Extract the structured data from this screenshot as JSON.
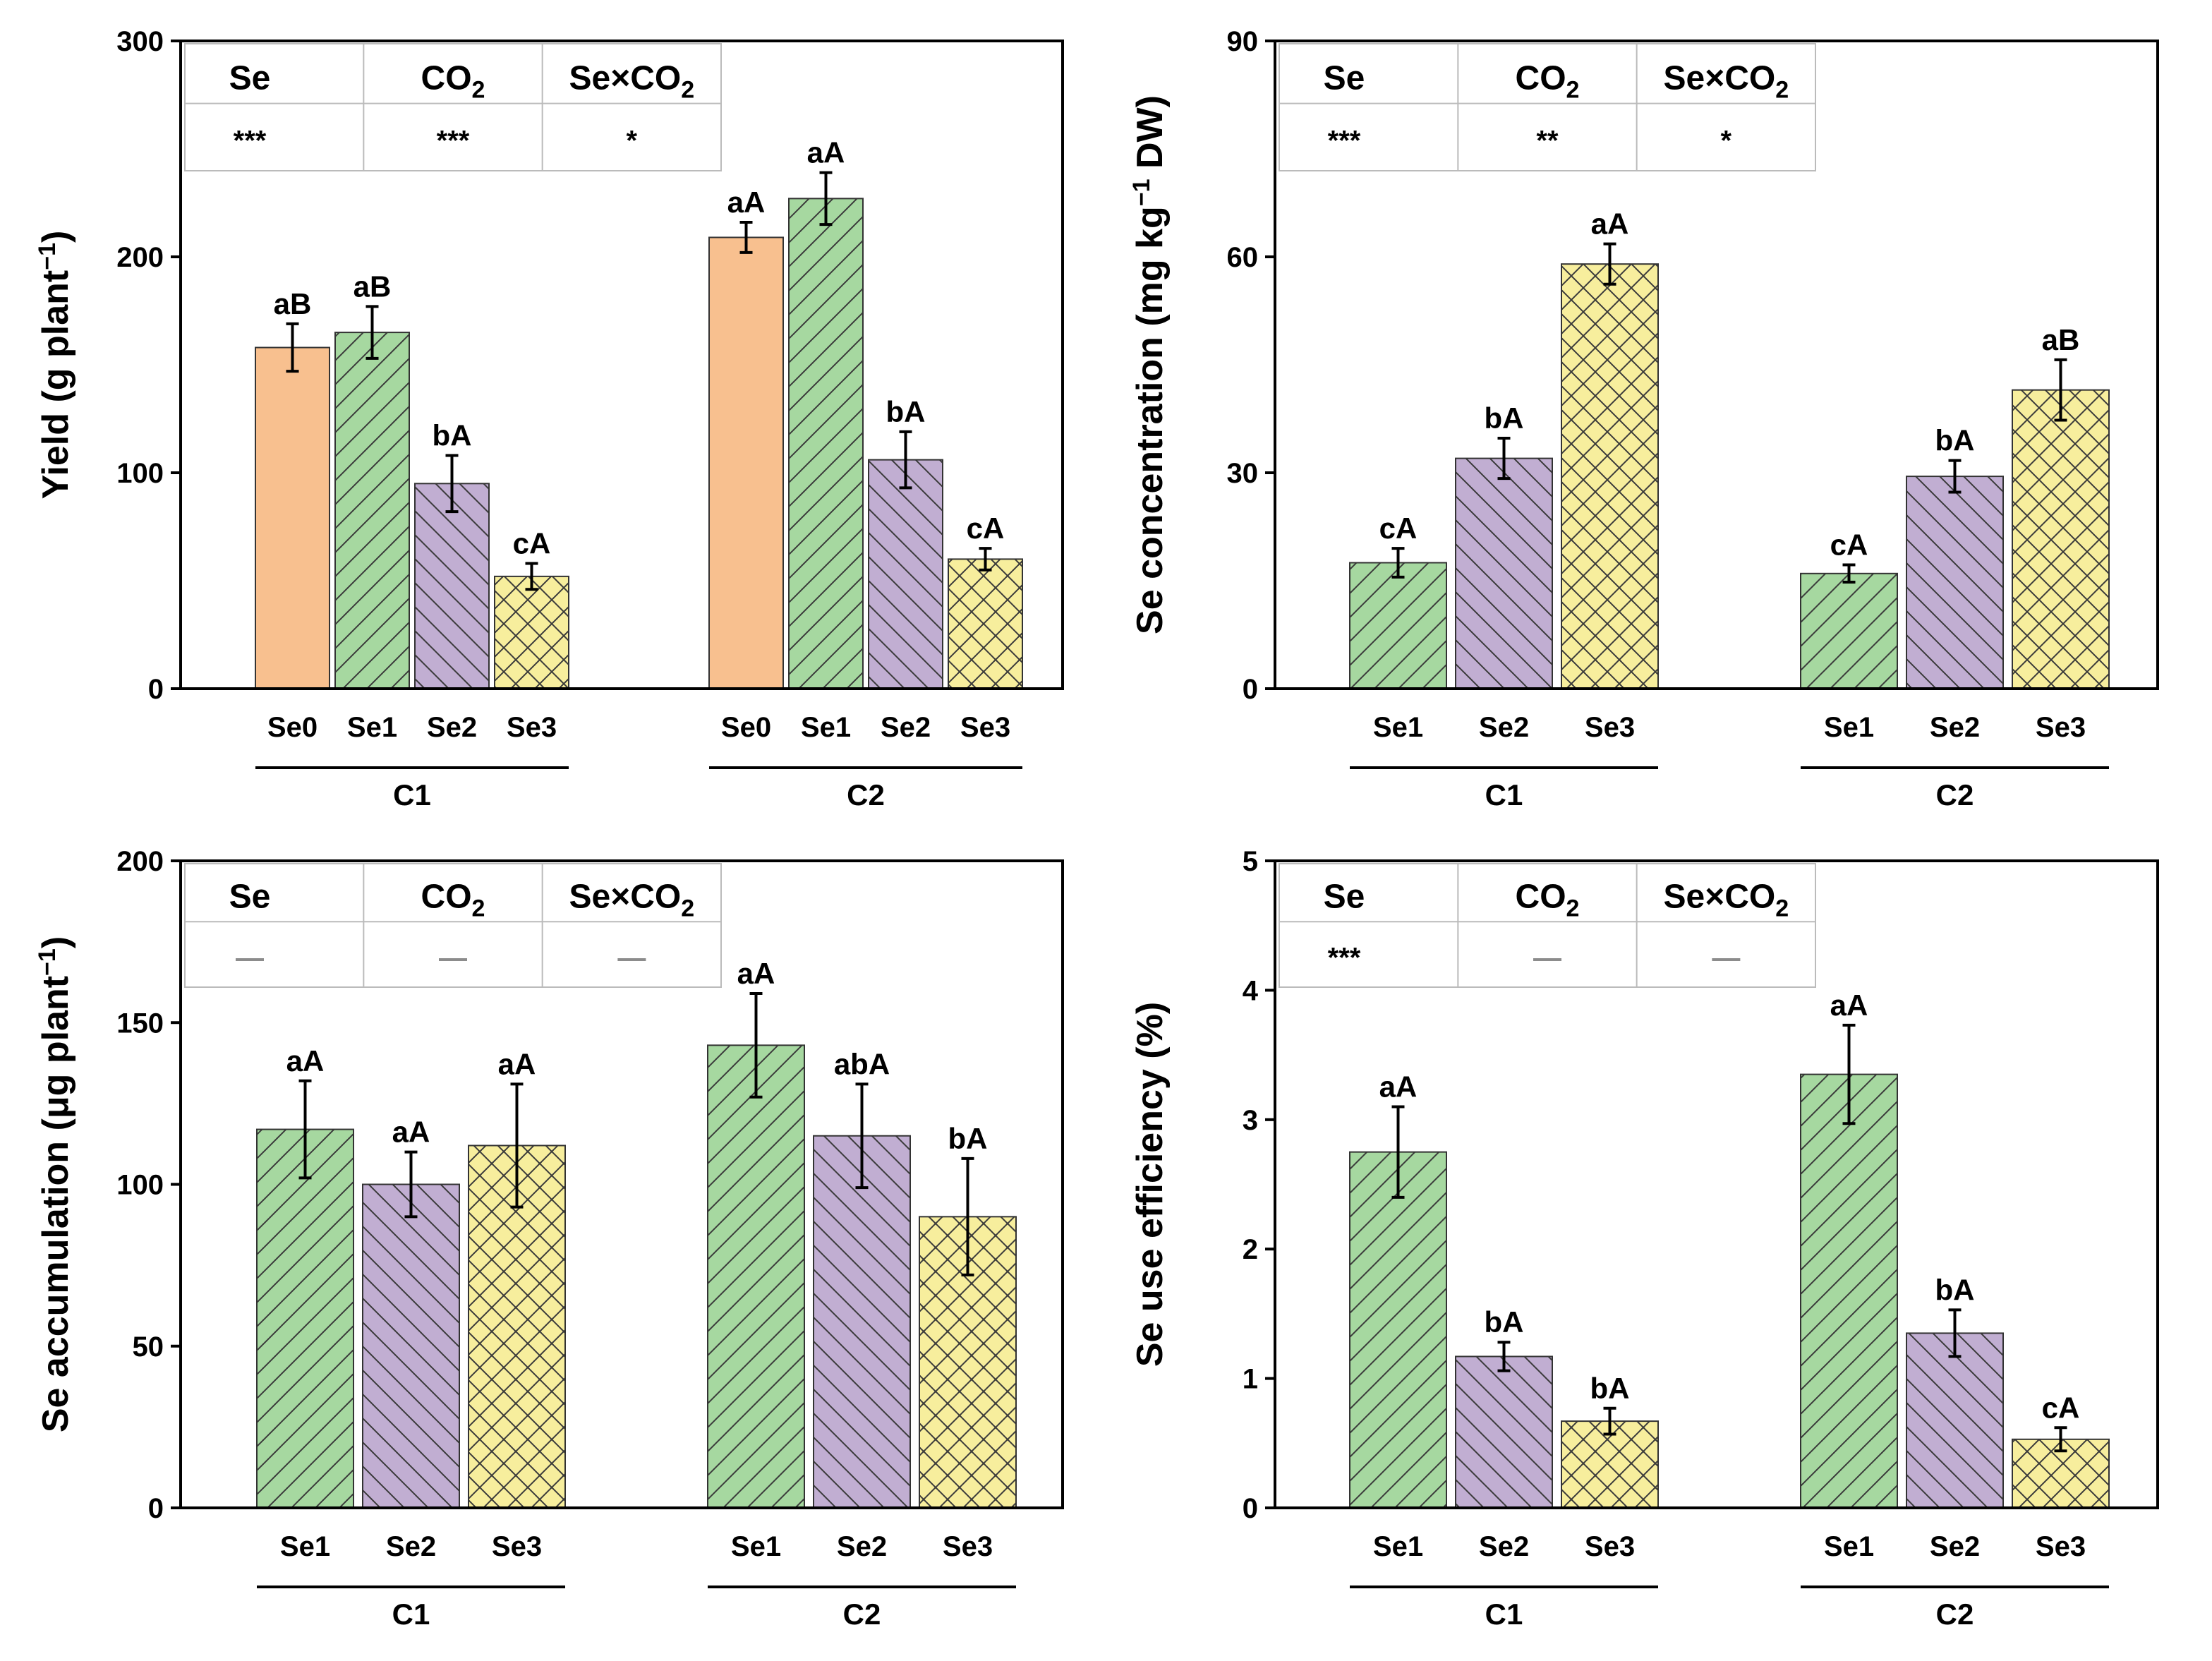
{
  "colors": {
    "Se0": "#F8C08F",
    "Se1": "#A6D8A0",
    "Se2": "#C1AED2",
    "Se3": "#F7EE9D",
    "dash": "#8c8c8c"
  },
  "patterns": {
    "Se0": "none",
    "Se1": "forward-diagonal",
    "Se2": "back-diagonal",
    "Se3": "crosshatch"
  },
  "chart_data": [
    {
      "type": "bar",
      "ylabel_parts": [
        "Yield (g plant",
        "−1",
        ")"
      ],
      "ylim": [
        0,
        300
      ],
      "yticks": [
        "0",
        "100",
        "200",
        "300"
      ],
      "groups": [
        {
          "name": "C1",
          "bars": [
            {
              "cat": "Se0",
              "value": 158,
              "err": 11,
              "label": "aB"
            },
            {
              "cat": "Se1",
              "value": 165,
              "err": 12,
              "label": "aB"
            },
            {
              "cat": "Se2",
              "value": 95,
              "err": 13,
              "label": "bA"
            },
            {
              "cat": "Se3",
              "value": 52,
              "err": 6,
              "label": "cA"
            }
          ]
        },
        {
          "name": "C2",
          "bars": [
            {
              "cat": "Se0",
              "value": 209,
              "err": 7,
              "label": "aA"
            },
            {
              "cat": "Se1",
              "value": 227,
              "err": 12,
              "label": "aA"
            },
            {
              "cat": "Se2",
              "value": 106,
              "err": 13,
              "label": "bA"
            },
            {
              "cat": "Se3",
              "value": 60,
              "err": 5,
              "label": "cA"
            }
          ]
        }
      ],
      "table": {
        "headers": [
          {
            "main": "Se",
            "sub": ""
          },
          {
            "main": "CO",
            "sub": "2"
          },
          {
            "main": "Se×CO",
            "sub": "2"
          }
        ],
        "values": [
          "***",
          "***",
          "*"
        ]
      }
    },
    {
      "type": "bar",
      "ylabel_parts": [
        "Se concentration (mg kg",
        "−1",
        " DW)"
      ],
      "ylim": [
        0,
        90
      ],
      "yticks": [
        "0",
        "30",
        "60",
        "90"
      ],
      "groups": [
        {
          "name": "C1",
          "bars": [
            {
              "cat": "Se1",
              "value": 17.5,
              "err": 2,
              "label": "cA"
            },
            {
              "cat": "Se2",
              "value": 32,
              "err": 2.8,
              "label": "bA"
            },
            {
              "cat": "Se3",
              "value": 59,
              "err": 2.8,
              "label": "aA"
            }
          ]
        },
        {
          "name": "C2",
          "bars": [
            {
              "cat": "Se1",
              "value": 16,
              "err": 1.2,
              "label": "cA"
            },
            {
              "cat": "Se2",
              "value": 29.5,
              "err": 2.2,
              "label": "bA"
            },
            {
              "cat": "Se3",
              "value": 41.5,
              "err": 4.2,
              "label": "aB"
            }
          ]
        }
      ],
      "table": {
        "headers": [
          {
            "main": "Se",
            "sub": ""
          },
          {
            "main": "CO",
            "sub": "2"
          },
          {
            "main": "Se×CO",
            "sub": "2"
          }
        ],
        "values": [
          "***",
          "**",
          "*"
        ]
      }
    },
    {
      "type": "bar",
      "ylabel_parts": [
        "Se accumulation (μg plant",
        "−1",
        ")"
      ],
      "ylim": [
        0,
        200
      ],
      "yticks": [
        "0",
        "50",
        "100",
        "150",
        "200"
      ],
      "groups": [
        {
          "name": "C1",
          "bars": [
            {
              "cat": "Se1",
              "value": 117,
              "err": 15,
              "label": "aA"
            },
            {
              "cat": "Se2",
              "value": 100,
              "err": 10,
              "label": "aA"
            },
            {
              "cat": "Se3",
              "value": 112,
              "err": 19,
              "label": "aA"
            }
          ]
        },
        {
          "name": "C2",
          "bars": [
            {
              "cat": "Se1",
              "value": 143,
              "err": 16,
              "label": "aA"
            },
            {
              "cat": "Se2",
              "value": 115,
              "err": 16,
              "label": "abA"
            },
            {
              "cat": "Se3",
              "value": 90,
              "err": 18,
              "label": "bA"
            }
          ]
        }
      ],
      "table": {
        "headers": [
          {
            "main": "Se",
            "sub": ""
          },
          {
            "main": "CO",
            "sub": "2"
          },
          {
            "main": "Se×CO",
            "sub": "2"
          }
        ],
        "values": [
          "—",
          "—",
          "—"
        ]
      }
    },
    {
      "type": "bar",
      "ylabel_parts": [
        "Se use efficiency (%)",
        "",
        ""
      ],
      "ylim": [
        0,
        5
      ],
      "yticks": [
        "0",
        "1",
        "2",
        "3",
        "4",
        "5"
      ],
      "groups": [
        {
          "name": "C1",
          "bars": [
            {
              "cat": "Se1",
              "value": 2.75,
              "err": 0.35,
              "label": "aA"
            },
            {
              "cat": "Se2",
              "value": 1.17,
              "err": 0.11,
              "label": "bA"
            },
            {
              "cat": "Se3",
              "value": 0.67,
              "err": 0.1,
              "label": "bA"
            }
          ]
        },
        {
          "name": "C2",
          "bars": [
            {
              "cat": "Se1",
              "value": 3.35,
              "err": 0.38,
              "label": "aA"
            },
            {
              "cat": "Se2",
              "value": 1.35,
              "err": 0.18,
              "label": "bA"
            },
            {
              "cat": "Se3",
              "value": 0.53,
              "err": 0.09,
              "label": "cA"
            }
          ]
        }
      ],
      "table": {
        "headers": [
          {
            "main": "Se",
            "sub": ""
          },
          {
            "main": "CO",
            "sub": "2"
          },
          {
            "main": "Se×CO",
            "sub": "2"
          }
        ],
        "values": [
          "***",
          "—",
          "—"
        ]
      }
    }
  ]
}
